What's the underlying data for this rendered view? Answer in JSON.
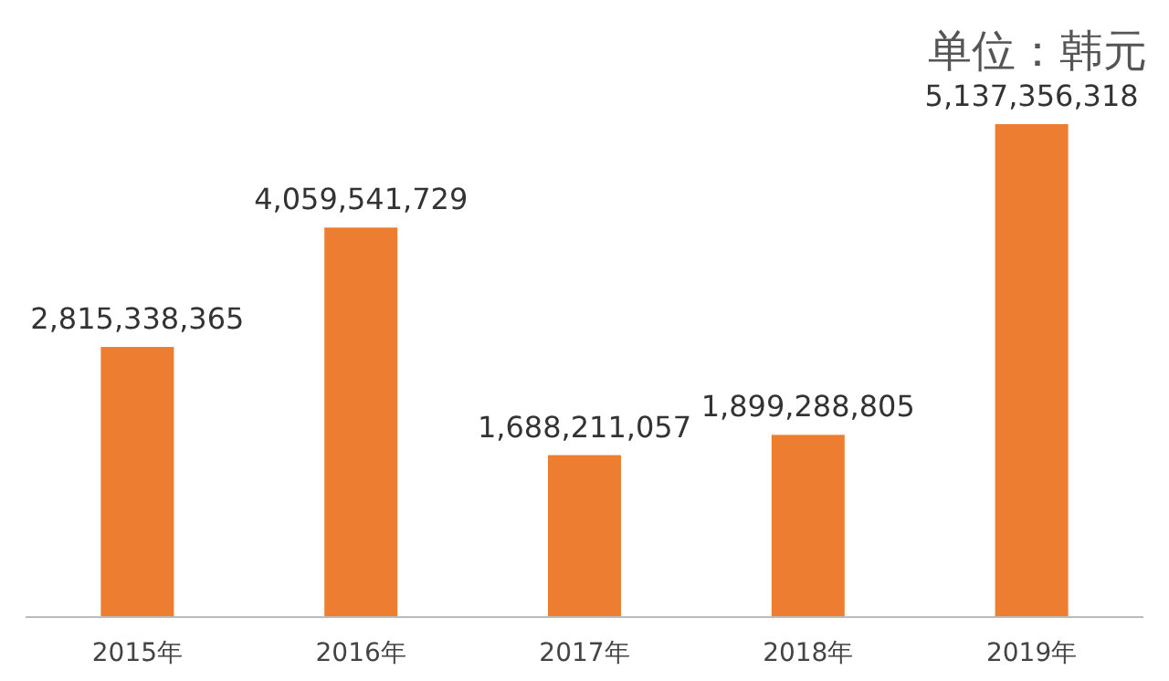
{
  "chart_data": {
    "type": "bar",
    "title": "单位：韩元",
    "categories": [
      "2015年",
      "2016年",
      "2017年",
      "2018年",
      "2019年"
    ],
    "values": [
      2815338365,
      4059541729,
      1688211057,
      1899288805,
      5137356318
    ],
    "value_labels": [
      "2,815,338,365",
      "4,059,541,729",
      "1,688,211,057",
      "1,899,288,805",
      "5,137,356,318"
    ],
    "color": "#ed7d31"
  }
}
